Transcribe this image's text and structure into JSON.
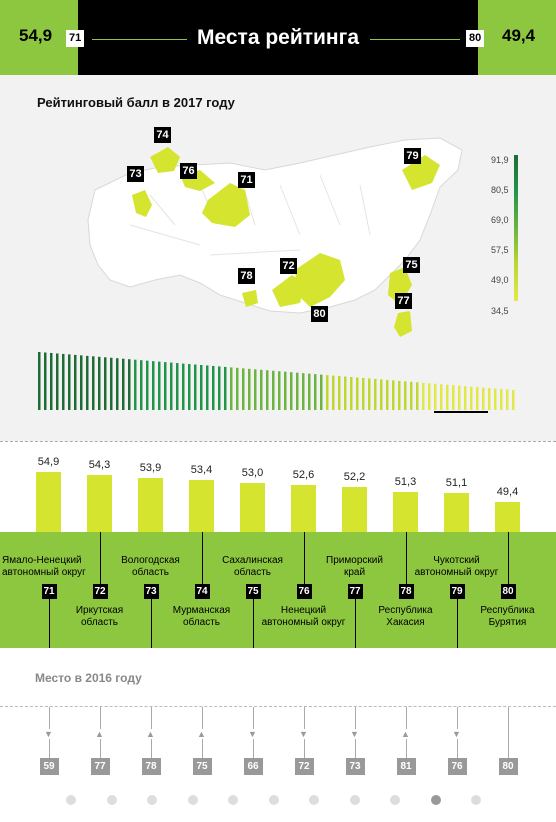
{
  "header": {
    "title": "Места рейтинга",
    "left_value": "54,9",
    "left_place": "71",
    "right_value": "49,4",
    "right_place": "80"
  },
  "map": {
    "title": "Рейтинговый балл в 2017 году",
    "legend": [
      "91,9",
      "80,5",
      "69,0",
      "57,5",
      "49,0",
      "34,5"
    ],
    "legend_colors": [
      "#1e6b35",
      "#22944a",
      "#6cb33f",
      "#bfd730",
      "#e1e84a"
    ],
    "markers": [
      "74",
      "73",
      "76",
      "71",
      "79",
      "72",
      "78",
      "75",
      "80",
      "77"
    ]
  },
  "chart_data": {
    "type": "bar",
    "title": "",
    "categories": [
      "Ямало-Ненецкий автономный округ",
      "Иркутская область",
      "Вологодская область",
      "Мурманская область",
      "Сахалинская область",
      "Ненецкий автономный округ",
      "Приморский край",
      "Республика Хакасия",
      "Чукотский автономный округ",
      "Республика Бурятия"
    ],
    "value_labels": [
      "54,9",
      "54,3",
      "53,9",
      "53,4",
      "53,0",
      "52,6",
      "52,2",
      "51,3",
      "51,1",
      "49,4"
    ],
    "values": [
      54.9,
      54.3,
      53.9,
      53.4,
      53.0,
      52.6,
      52.2,
      51.3,
      51.1,
      49.4
    ],
    "places": [
      "71",
      "72",
      "73",
      "74",
      "75",
      "76",
      "77",
      "78",
      "79",
      "80"
    ]
  },
  "regions": [
    {
      "l1": "Ямало-Ненецкий",
      "l2": "автономный округ",
      "place": "71"
    },
    {
      "l1": "Иркутская",
      "l2": "область",
      "place": "72"
    },
    {
      "l1": "Вологодская",
      "l2": "область",
      "place": "73"
    },
    {
      "l1": "Мурманская",
      "l2": "область",
      "place": "74"
    },
    {
      "l1": "Сахалинская",
      "l2": "область",
      "place": "75"
    },
    {
      "l1": "Ненецкий",
      "l2": "автономный округ",
      "place": "76"
    },
    {
      "l1": "Приморский",
      "l2": "край",
      "place": "77"
    },
    {
      "l1": "Республика",
      "l2": "Хакасия",
      "place": "78"
    },
    {
      "l1": "Чукотский",
      "l2": "автономный округ",
      "place": "79"
    },
    {
      "l1": "Республика",
      "l2": "Бурятия",
      "place": "80"
    }
  ],
  "prev_year": {
    "title": "Место в 2016 году",
    "places": [
      "59",
      "77",
      "78",
      "75",
      "66",
      "72",
      "73",
      "81",
      "76",
      "80"
    ],
    "arrows": [
      "down",
      "up",
      "up",
      "up",
      "down",
      "down",
      "down",
      "up",
      "down",
      "none"
    ]
  },
  "pagination": {
    "count": 11,
    "active": 9
  }
}
